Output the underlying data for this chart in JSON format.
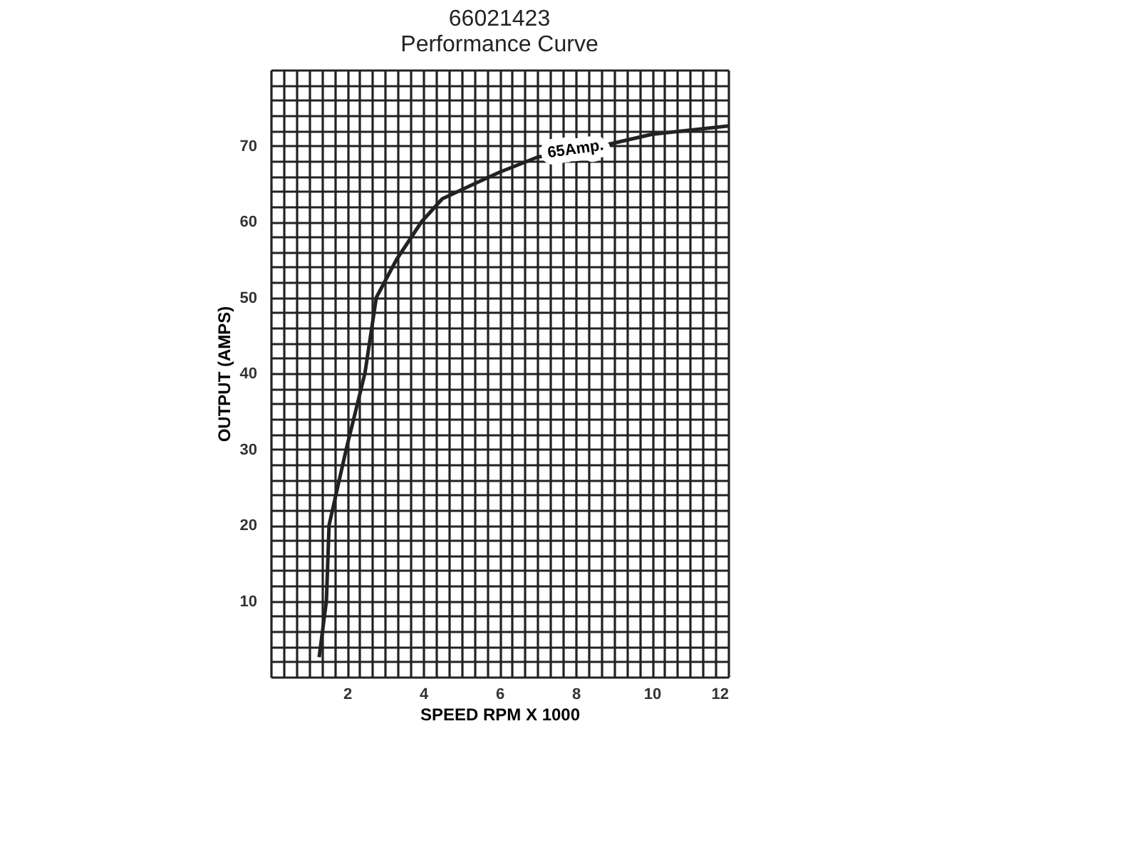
{
  "chart_data": {
    "type": "line",
    "title": [
      "66021423",
      "Performance Curve"
    ],
    "xlabel": "SPEED RPM X 1000",
    "ylabel": "OUTPUT (AMPS)",
    "x": [
      1.27,
      1.46,
      1.53,
      1.98,
      2.47,
      2.77,
      3.3,
      3.96,
      4.5,
      5.35,
      6.0,
      7.0,
      8.7,
      10.0,
      12.0
    ],
    "series": [
      {
        "color": "#222222",
        "values": [
          2.6,
          10,
          20,
          30,
          40,
          50,
          55,
          60,
          63,
          65,
          66.5,
          68.5,
          70,
          71.5,
          72.6
        ]
      }
    ],
    "annotations": [
      {
        "text": "65Amp.",
        "x": 8,
        "y": 69.5
      }
    ],
    "xlim": [
      0,
      12
    ],
    "ylim": [
      0,
      80
    ],
    "xticks": [
      {
        "value": 0,
        "label": null
      },
      {
        "value": 0.333,
        "label": null
      },
      {
        "value": 0.667,
        "label": null
      },
      {
        "value": 1,
        "label": null
      },
      {
        "value": 1.333,
        "label": null
      },
      {
        "value": 1.667,
        "label": null
      },
      2,
      {
        "value": 2.333,
        "label": null
      },
      {
        "value": 2.667,
        "label": null
      },
      {
        "value": 3,
        "label": null
      },
      {
        "value": 3.333,
        "label": null
      },
      {
        "value": 3.667,
        "label": null
      },
      4,
      {
        "value": 4.333,
        "label": null
      },
      {
        "value": 4.667,
        "label": null
      },
      {
        "value": 5,
        "label": null
      },
      {
        "value": 5.333,
        "label": null
      },
      {
        "value": 5.667,
        "label": null
      },
      6,
      {
        "value": 6.333,
        "label": null
      },
      {
        "value": 6.667,
        "label": null
      },
      {
        "value": 7,
        "label": null
      },
      {
        "value": 7.333,
        "label": null
      },
      {
        "value": 7.667,
        "label": null
      },
      8,
      {
        "value": 8.333,
        "label": null
      },
      {
        "value": 8.667,
        "label": null
      },
      {
        "value": 9,
        "label": null
      },
      {
        "value": 9.333,
        "label": null
      },
      {
        "value": 9.667,
        "label": null
      },
      10,
      {
        "value": 10.333,
        "label": null
      },
      {
        "value": 10.667,
        "label": null
      },
      {
        "value": 11,
        "label": null
      },
      {
        "value": 11.333,
        "label": null
      },
      {
        "value": 11.667,
        "label": null
      },
      12
    ],
    "yticks": [
      {
        "value": 0,
        "label": null
      },
      {
        "value": 2,
        "label": null
      },
      {
        "value": 4,
        "label": null
      },
      {
        "value": 6,
        "label": null
      },
      {
        "value": 8,
        "label": null
      },
      10,
      {
        "value": 12,
        "label": null
      },
      {
        "value": 14,
        "label": null
      },
      {
        "value": 16,
        "label": null
      },
      {
        "value": 18,
        "label": null
      },
      20,
      {
        "value": 22,
        "label": null
      },
      {
        "value": 24,
        "label": null
      },
      {
        "value": 26,
        "label": null
      },
      {
        "value": 28,
        "label": null
      },
      30,
      {
        "value": 32,
        "label": null
      },
      {
        "value": 34,
        "label": null
      },
      {
        "value": 36,
        "label": null
      },
      {
        "value": 38,
        "label": null
      },
      40,
      {
        "value": 42,
        "label": null
      },
      {
        "value": 44,
        "label": null
      },
      {
        "value": 46,
        "label": null
      },
      {
        "value": 48,
        "label": null
      },
      50,
      {
        "value": 52,
        "label": null
      },
      {
        "value": 54,
        "label": null
      },
      {
        "value": 56,
        "label": null
      },
      {
        "value": 58,
        "label": null
      },
      60,
      {
        "value": 62,
        "label": null
      },
      {
        "value": 64,
        "label": null
      },
      {
        "value": 66,
        "label": null
      },
      {
        "value": 68,
        "label": null
      },
      70,
      {
        "value": 72,
        "label": null
      },
      {
        "value": 74,
        "label": null
      },
      {
        "value": 76,
        "label": null
      },
      {
        "value": 78,
        "label": null
      },
      {
        "value": 80,
        "label": null
      }
    ],
    "grid": true,
    "marker": "none",
    "line_style": "solid"
  }
}
